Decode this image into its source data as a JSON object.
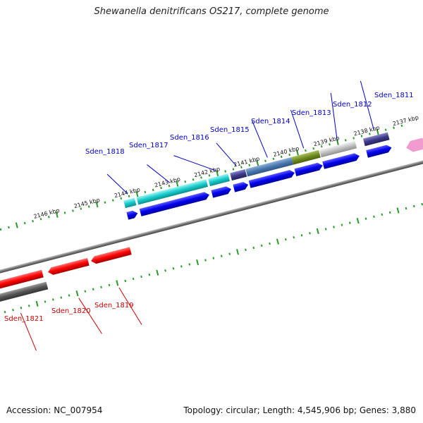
{
  "header": {
    "title": "Shewanella denitrificans OS217, complete genome"
  },
  "footer": {
    "accession": "Accession: NC_007954",
    "stats": "Topology: circular; Length: 4,545,906 bp; Genes: 3,880"
  },
  "scale": {
    "ticks": [
      "2137 kbp",
      "2138 kbp",
      "2139 kbp",
      "2140 kbp",
      "2141 kbp",
      "2142 kbp",
      "2143 kbp",
      "2144 kbp",
      "2145 kbp",
      "2146 kbp"
    ]
  },
  "genes": {
    "forward_labels": [
      "Sden_1811",
      "Sden_1812",
      "Sden_1813",
      "Sden_1814",
      "Sden_1815",
      "Sden_1816",
      "Sden_1817",
      "Sden_1818"
    ],
    "reverse_labels": [
      "Sden_1819",
      "Sden_1820",
      "Sden_1821"
    ]
  },
  "colors": {
    "forward_label": "#0000cc",
    "reverse_label": "#cc0000",
    "forward_gene": "#0000ee",
    "reverse_gene": "#ff0000",
    "backbone": "#777777",
    "tick": "#2a9a2a"
  }
}
